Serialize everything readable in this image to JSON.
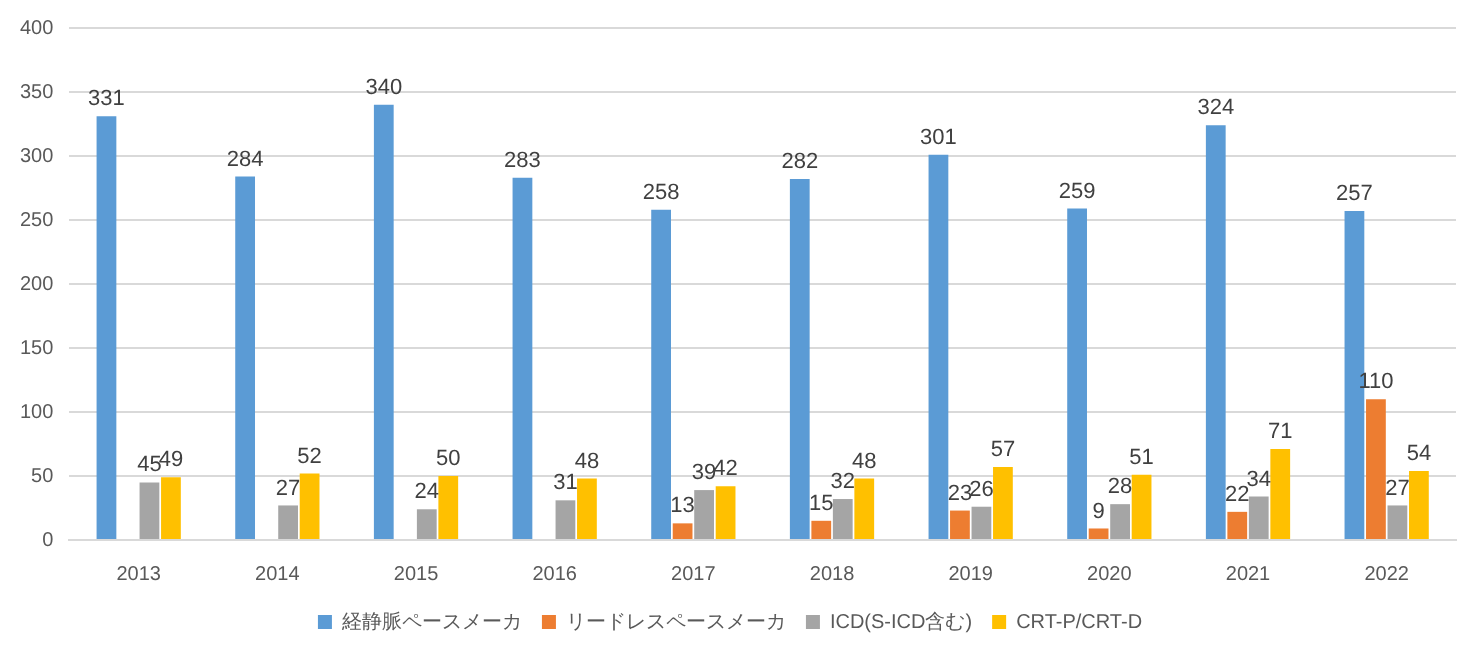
{
  "chart_data": {
    "type": "bar",
    "categories": [
      "2013",
      "2014",
      "2015",
      "2016",
      "2017",
      "2018",
      "2019",
      "2020",
      "2021",
      "2022"
    ],
    "series": [
      {
        "name": "経静脈ペースメーカ",
        "color": "#5b9bd5",
        "values": [
          331,
          284,
          340,
          283,
          258,
          282,
          301,
          259,
          324,
          257
        ]
      },
      {
        "name": "リードレスペースメーカ",
        "color": "#ed7d31",
        "values": [
          null,
          null,
          null,
          null,
          13,
          15,
          23,
          9,
          22,
          110
        ]
      },
      {
        "name": "ICD(S-ICD含む)",
        "color": "#a5a5a5",
        "values": [
          45,
          27,
          24,
          31,
          39,
          32,
          26,
          28,
          34,
          27
        ]
      },
      {
        "name": "CRT-P/CRT-D",
        "color": "#ffc000",
        "values": [
          49,
          52,
          50,
          48,
          42,
          48,
          57,
          51,
          71,
          54
        ]
      }
    ],
    "ylim": [
      0,
      400
    ],
    "yticks": [
      0,
      50,
      100,
      150,
      200,
      250,
      300,
      350,
      400
    ],
    "grid": "y",
    "legend": "bottom",
    "data_labels": true
  }
}
